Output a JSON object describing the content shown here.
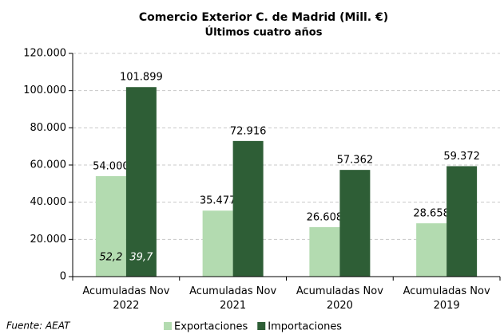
{
  "chart_data": {
    "type": "bar",
    "title": "Comercio Exterior C. de Madrid (Mill. €)",
    "subtitle": "Últimos cuatro años",
    "categories": [
      "Acumuladas Nov 2022",
      "Acumuladas Nov 2021",
      "Acumuladas Nov 2020",
      "Acumuladas Nov 2019"
    ],
    "series": [
      {
        "name": "Exportaciones",
        "color": "#b3dbb0",
        "values": [
          54000,
          35477,
          26608,
          28658
        ],
        "value_labels": [
          "54.000",
          "35.477",
          "26.608",
          "28.658"
        ]
      },
      {
        "name": "Importaciones",
        "color": "#2e5e36",
        "values": [
          101899,
          72916,
          57362,
          59372
        ],
        "value_labels": [
          "101.899",
          "72.916",
          "57.362",
          "59.372"
        ]
      }
    ],
    "annotations": [
      "52,2",
      "39,7"
    ],
    "source": "Fuente: AEAT",
    "ylim": [
      0,
      120000
    ],
    "yticks": [
      {
        "value": 0,
        "label": "0"
      },
      {
        "value": 20000,
        "label": "20.000"
      },
      {
        "value": 40000,
        "label": "40.000"
      },
      {
        "value": 60000,
        "label": "60.000"
      },
      {
        "value": 80000,
        "label": "80.000"
      },
      {
        "value": 100000,
        "label": "100.000"
      },
      {
        "value": 120000,
        "label": "120.000"
      }
    ],
    "grid": true,
    "legend": "bottom"
  }
}
